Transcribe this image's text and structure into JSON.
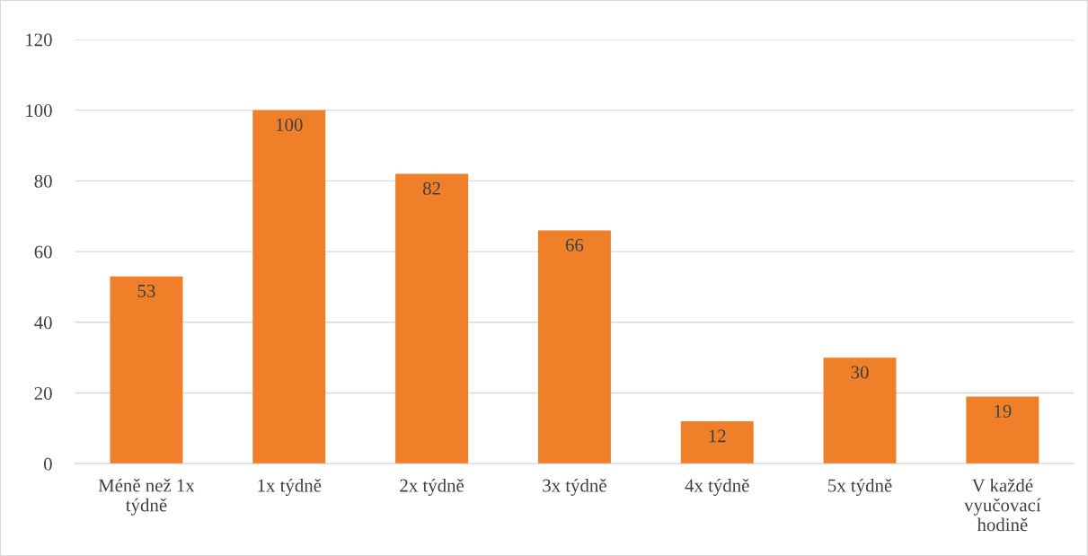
{
  "chart_data": {
    "type": "bar",
    "categories": [
      "Méně než 1x týdně",
      "1x týdně",
      "2x týdně",
      "3x týdně",
      "4x týdně",
      "5x týdně",
      "V každé vyučovací hodině"
    ],
    "values": [
      53,
      100,
      82,
      66,
      12,
      30,
      19
    ],
    "color": "#f07f2a",
    "ylim": [
      0,
      120
    ],
    "yticks": [
      0,
      20,
      40,
      60,
      80,
      100,
      120
    ],
    "grid": "y",
    "data_labels": true,
    "legend": false
  }
}
